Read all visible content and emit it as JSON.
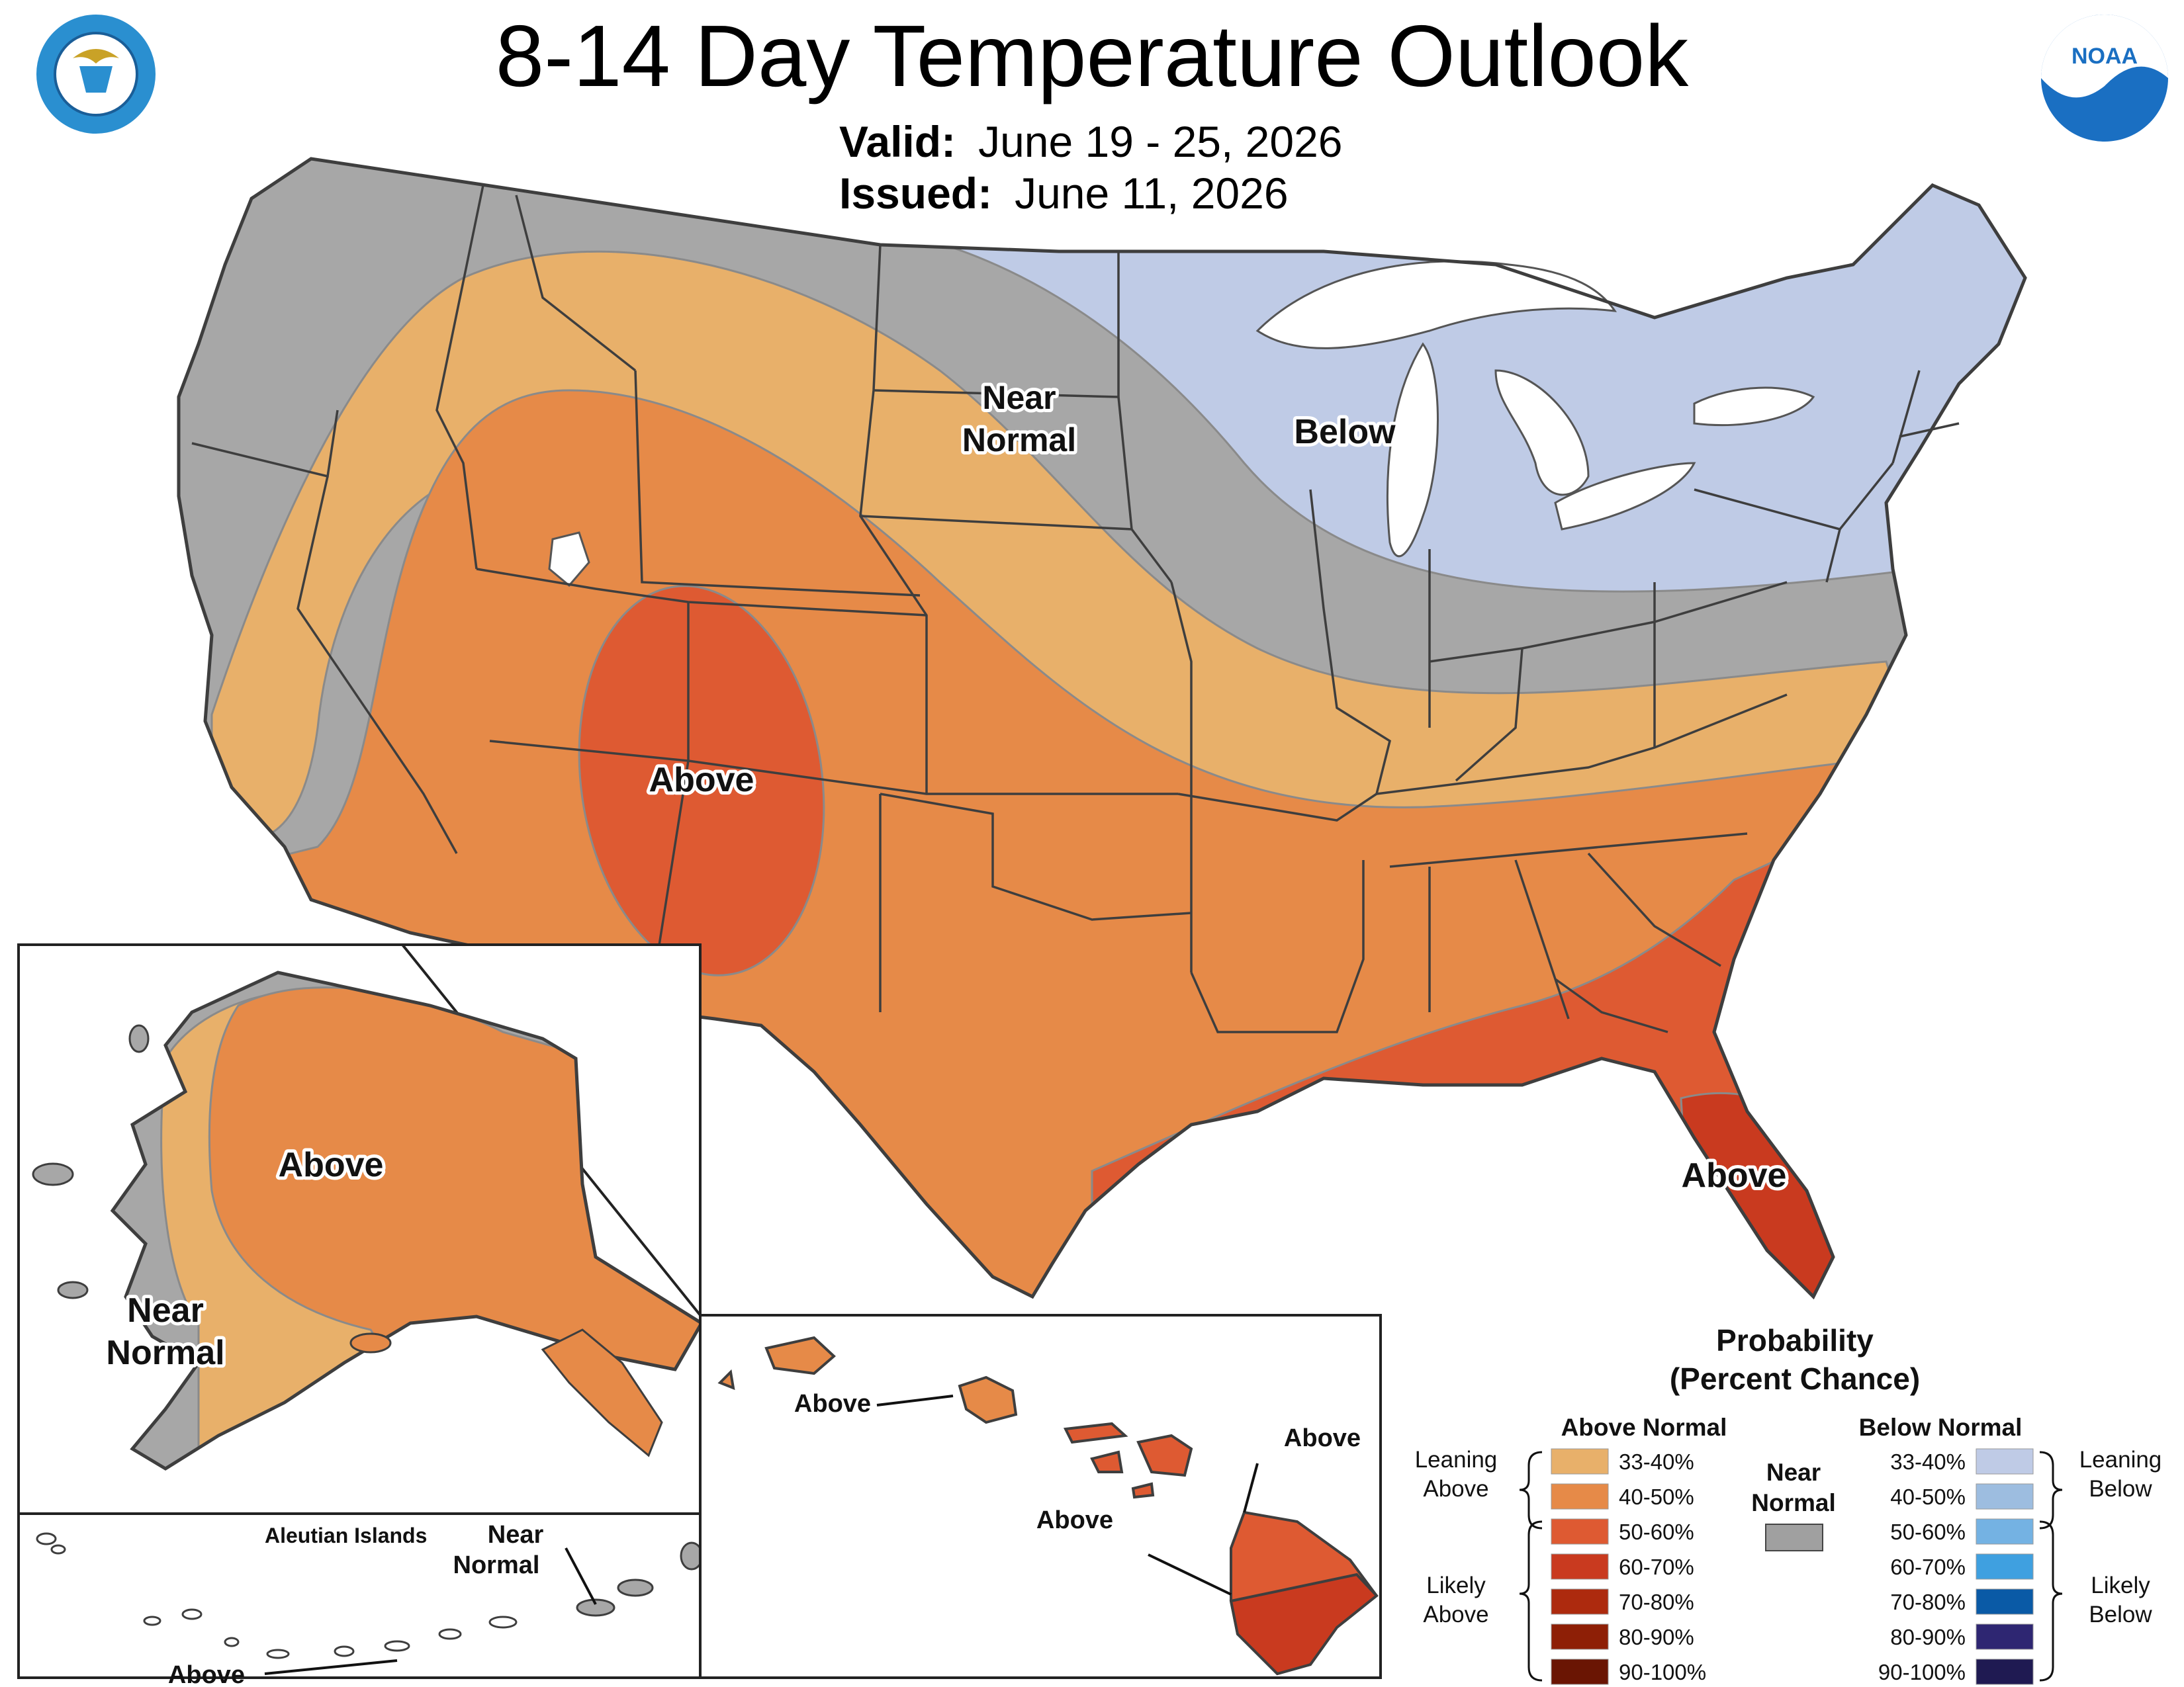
{
  "title": "8-14 Day Temperature Outlook",
  "valid": {
    "label": "Valid:",
    "value": "June 19 - 25, 2026"
  },
  "issued": {
    "label": "Issued:",
    "value": "June 11, 2026"
  },
  "logos": {
    "left": "department-of-commerce-seal",
    "right": "noaa-logo"
  },
  "map_labels": {
    "conus_near_normal_1": "Near",
    "conus_near_normal_2": "Normal",
    "conus_below": "Below",
    "conus_above_sw": "Above",
    "conus_above_fl": "Above",
    "alaska_above": "Above",
    "alaska_near_1": "Near",
    "alaska_near_2": "Normal",
    "aleutian_title": "Aleutian Islands",
    "aleutian_near_1": "Near",
    "aleutian_near_2": "Normal",
    "aleutian_above": "Above",
    "hawaii_above_1": "Above",
    "hawaii_above_2": "Above",
    "hawaii_above_3": "Above"
  },
  "legend": {
    "title_1": "Probability",
    "title_2": "(Percent Chance)",
    "above_header": "Above Normal",
    "below_header": "Below Normal",
    "near_header_1": "Near",
    "near_header_2": "Normal",
    "near_color": "#a0a0a0",
    "leaning_above_1": "Leaning",
    "leaning_above_2": "Above",
    "likely_above_1": "Likely",
    "likely_above_2": "Above",
    "leaning_below_1": "Leaning",
    "leaning_below_2": "Below",
    "likely_below_1": "Likely",
    "likely_below_2": "Below",
    "above": [
      {
        "range": "33-40%",
        "color": "#e8b06a"
      },
      {
        "range": "40-50%",
        "color": "#e68a48"
      },
      {
        "range": "50-60%",
        "color": "#de5a32"
      },
      {
        "range": "60-70%",
        "color": "#c93a1f"
      },
      {
        "range": "70-80%",
        "color": "#ad2a0e"
      },
      {
        "range": "80-90%",
        "color": "#8e1f06"
      },
      {
        "range": "90-100%",
        "color": "#6a1503"
      }
    ],
    "below": [
      {
        "range": "33-40%",
        "color": "#bfcbe6"
      },
      {
        "range": "40-50%",
        "color": "#9dbde0"
      },
      {
        "range": "50-60%",
        "color": "#74b2e3"
      },
      {
        "range": "60-70%",
        "color": "#3fa0e0"
      },
      {
        "range": "70-80%",
        "color": "#0a5aa6"
      },
      {
        "range": "80-90%",
        "color": "#2e2672"
      },
      {
        "range": "90-100%",
        "color": "#1f1a52"
      }
    ]
  }
}
